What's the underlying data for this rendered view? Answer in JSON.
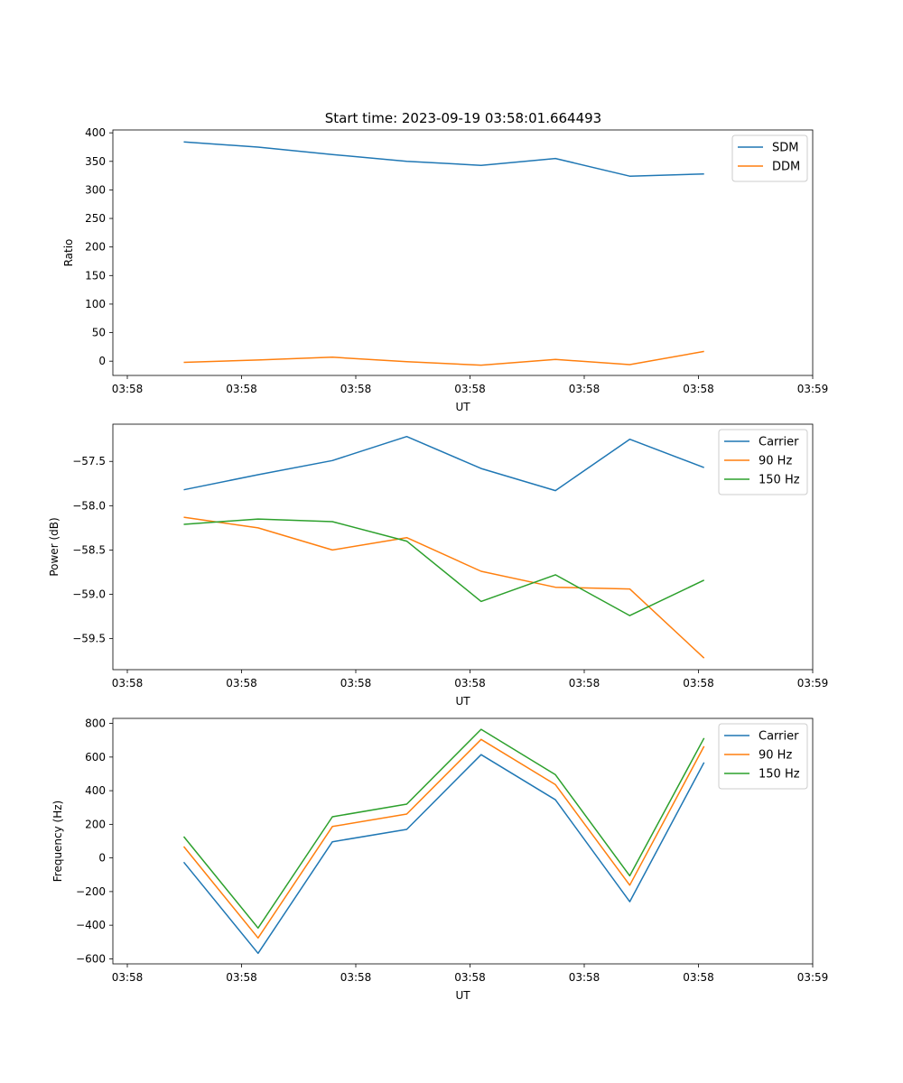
{
  "title": "Start time: 2023-09-19 03:58:01.664493",
  "colors": {
    "blue": "#1f77b4",
    "orange": "#ff7f0e",
    "green": "#2ca02c"
  },
  "chart_data": [
    {
      "type": "line",
      "title": "Start time: 2023-09-19 03:58:01.664493",
      "xlabel": "UT",
      "ylabel": "Ratio",
      "xticklabels": [
        "03:58",
        "03:58",
        "03:58",
        "03:58",
        "03:58",
        "03:58",
        "03:59"
      ],
      "x": [
        0.5,
        1.15,
        1.8,
        2.45,
        3.1,
        3.75,
        4.4,
        5.05
      ],
      "xlim": [
        -0.12,
        6.0
      ],
      "ylim": [
        -25,
        405
      ],
      "yticks": [
        0,
        50,
        100,
        150,
        200,
        250,
        300,
        350,
        400
      ],
      "legend": "top-right",
      "series": [
        {
          "name": "SDM",
          "color": "#1f77b4",
          "values": [
            384,
            375,
            362,
            350,
            343,
            355,
            324,
            328
          ]
        },
        {
          "name": "DDM",
          "color": "#ff7f0e",
          "values": [
            -2,
            2,
            7,
            -1,
            -7,
            3,
            -6,
            17
          ]
        }
      ]
    },
    {
      "type": "line",
      "xlabel": "UT",
      "ylabel": "Power (dB)",
      "xticklabels": [
        "03:58",
        "03:58",
        "03:58",
        "03:58",
        "03:58",
        "03:58",
        "03:59"
      ],
      "x": [
        0.5,
        1.15,
        1.8,
        2.45,
        3.1,
        3.75,
        4.4,
        5.05
      ],
      "xlim": [
        -0.12,
        6.0
      ],
      "ylim": [
        -59.85,
        -57.08
      ],
      "yticks": [
        -57.5,
        -58.0,
        -58.5,
        -59.0,
        -59.5
      ],
      "ytick_labels": [
        "−57.5",
        "−58.0",
        "−58.5",
        "−59.0",
        "−59.5"
      ],
      "legend": "top-right",
      "series": [
        {
          "name": "Carrier",
          "color": "#1f77b4",
          "values": [
            -57.82,
            -57.65,
            -57.49,
            -57.22,
            -57.58,
            -57.83,
            -57.25,
            -57.57
          ]
        },
        {
          "name": "90 Hz",
          "color": "#ff7f0e",
          "values": [
            -58.13,
            -58.25,
            -58.5,
            -58.36,
            -58.74,
            -58.92,
            -58.94,
            -59.72
          ]
        },
        {
          "name": "150 Hz",
          "color": "#2ca02c",
          "values": [
            -58.21,
            -58.15,
            -58.18,
            -58.4,
            -59.08,
            -58.78,
            -59.24,
            -58.84
          ]
        }
      ]
    },
    {
      "type": "line",
      "xlabel": "UT",
      "ylabel": "Frequency (Hz)",
      "xticklabels": [
        "03:58",
        "03:58",
        "03:58",
        "03:58",
        "03:58",
        "03:58",
        "03:59"
      ],
      "x": [
        0.5,
        1.15,
        1.8,
        2.45,
        3.1,
        3.75,
        4.4,
        5.05
      ],
      "xlim": [
        -0.12,
        6.0
      ],
      "ylim": [
        -630,
        830
      ],
      "yticks": [
        800,
        600,
        400,
        200,
        0,
        -200,
        -400,
        -600
      ],
      "ytick_labels": [
        "800",
        "600",
        "400",
        "200",
        "0",
        "−200",
        "−400",
        "−600"
      ],
      "legend": "top-right",
      "series": [
        {
          "name": "Carrier",
          "color": "#1f77b4",
          "values": [
            -25,
            -567,
            96,
            170,
            614,
            346,
            -260,
            568
          ]
        },
        {
          "name": "90 Hz",
          "color": "#ff7f0e",
          "values": [
            68,
            -476,
            187,
            261,
            705,
            436,
            -162,
            664
          ]
        },
        {
          "name": "150 Hz",
          "color": "#2ca02c",
          "values": [
            127,
            -417,
            245,
            320,
            765,
            495,
            -106,
            713
          ]
        }
      ]
    }
  ]
}
